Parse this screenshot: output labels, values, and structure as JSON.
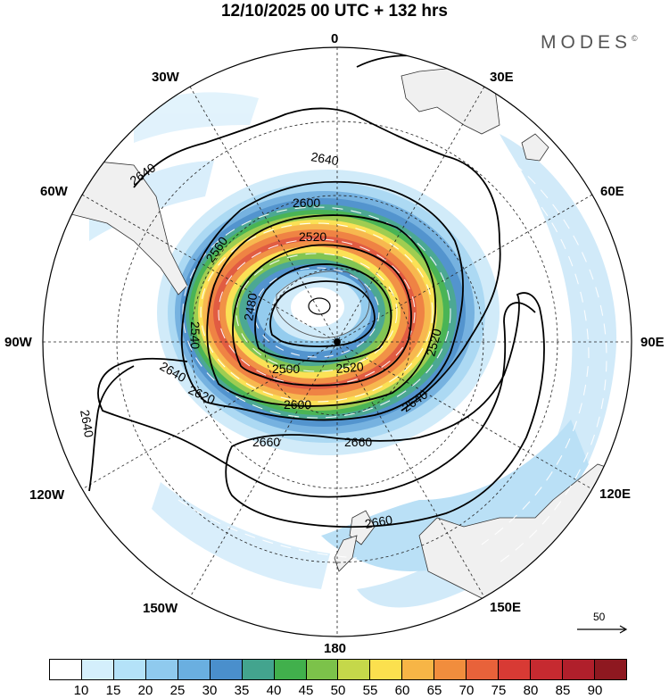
{
  "title": "12/10/2025  00 UTC  + 132 hrs",
  "brand": "MODES",
  "brand_mark": "©",
  "lon_labels": {
    "0": "0",
    "30E": "30E",
    "60E": "60E",
    "90E": "90E",
    "120E": "120E",
    "150E": "150E",
    "180": "180",
    "150W": "150W",
    "120W": "120W",
    "90W": "90W",
    "60W": "60W",
    "30W": "30W"
  },
  "contour_labels": [
    "2640",
    "2640",
    "2600",
    "2560",
    "2520",
    "2480",
    "2540",
    "2520",
    "2500",
    "2520",
    "2600",
    "2620",
    "2640",
    "2640",
    "2640",
    "2660",
    "2660",
    "2660"
  ],
  "reference_vector": {
    "label": "50",
    "units_value": 50
  },
  "colorbar": {
    "ticks": [
      "10",
      "15",
      "20",
      "25",
      "30",
      "35",
      "40",
      "45",
      "50",
      "55",
      "60",
      "65",
      "70",
      "75",
      "80",
      "85",
      "90"
    ],
    "colors": [
      "#ffffff",
      "#d4effc",
      "#b4e2f8",
      "#8fcaee",
      "#6aafe0",
      "#4a8fcc",
      "#43a48e",
      "#41b04c",
      "#7cc24a",
      "#c5d84a",
      "#fbe04e",
      "#f7b546",
      "#f18d3d",
      "#e8623a",
      "#d83a34",
      "#c62a30",
      "#b01f2b",
      "#8e1820"
    ]
  }
}
